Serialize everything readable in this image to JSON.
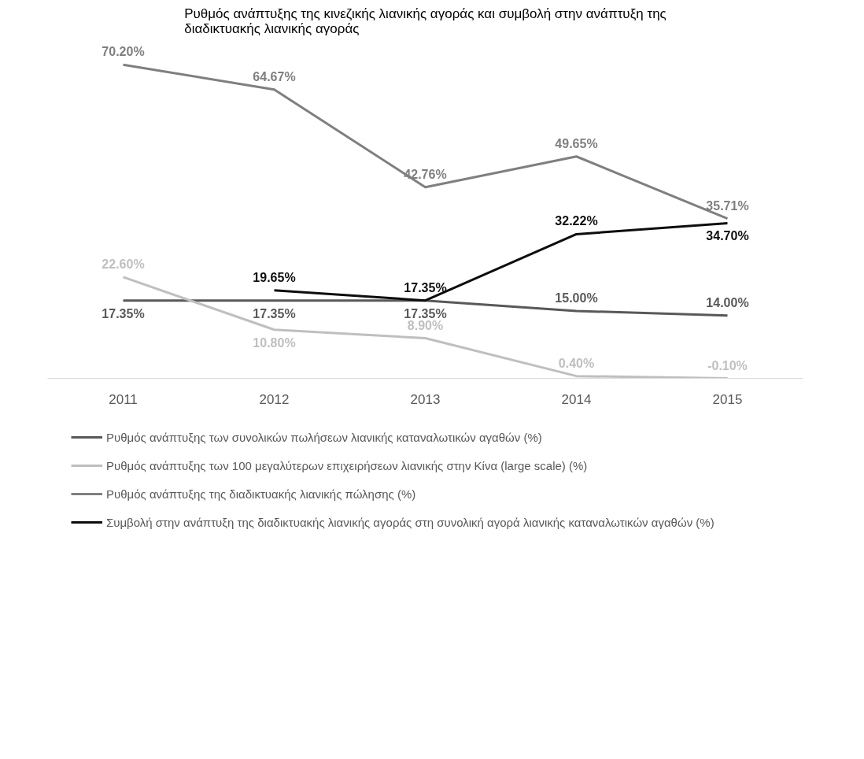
{
  "chart_data": {
    "type": "line",
    "title": "Ρυθμός ανάπτυξης της κινεζικής λιανικής αγοράς και συμβολή στην ανάπτυξη της διαδικτυακής λιανικής αγοράς",
    "categories": [
      "2011",
      "2012",
      "2013",
      "2014",
      "2015"
    ],
    "series": [
      {
        "name": "Ρυθμός ανάπτυξης των συνολικών πωλήσεων λιανικής καταναλωτικών αγαθών (%)",
        "color": "#595959",
        "values": [
          17.35,
          17.35,
          17.35,
          15.0,
          14.0
        ],
        "value_labels": [
          "17.35%",
          "17.35%",
          "17.35%",
          "15.00%",
          "14.00%"
        ]
      },
      {
        "name": "Ρυθμός ανάπτυξης των 100 μεγαλύτερων επιχειρήσεων λιανικής στην Κίνα (large scale) (%)",
        "color": "#bfbfbf",
        "values": [
          22.6,
          10.8,
          8.9,
          0.4,
          -0.1
        ],
        "value_labels": [
          "22.60%",
          "10.80%",
          "8.90%",
          "0.40%",
          "-0.10%"
        ]
      },
      {
        "name": "Ρυθμός ανάπτυξης της διαδικτυακής λιανικής πώλησης (%)",
        "color": "#7f7f7f",
        "values": [
          70.2,
          64.67,
          42.76,
          49.65,
          35.71
        ],
        "value_labels": [
          "70.20%",
          "64.67%",
          "42.76%",
          "49.65%",
          "35.71%"
        ]
      },
      {
        "name": "Συμβολή στην ανάπτυξη της διαδικτυακής λιανικής αγοράς στη συνολική αγορά λιανικής καταναλωτικών αγαθών (%)",
        "color": "#0d0d0d",
        "values": [
          null,
          19.65,
          17.35,
          32.22,
          34.7
        ],
        "value_labels": [
          null,
          "19.65%",
          "17.35%",
          "32.22%",
          "34.70%"
        ]
      }
    ],
    "legend": "bottom",
    "line_style": "solid"
  }
}
